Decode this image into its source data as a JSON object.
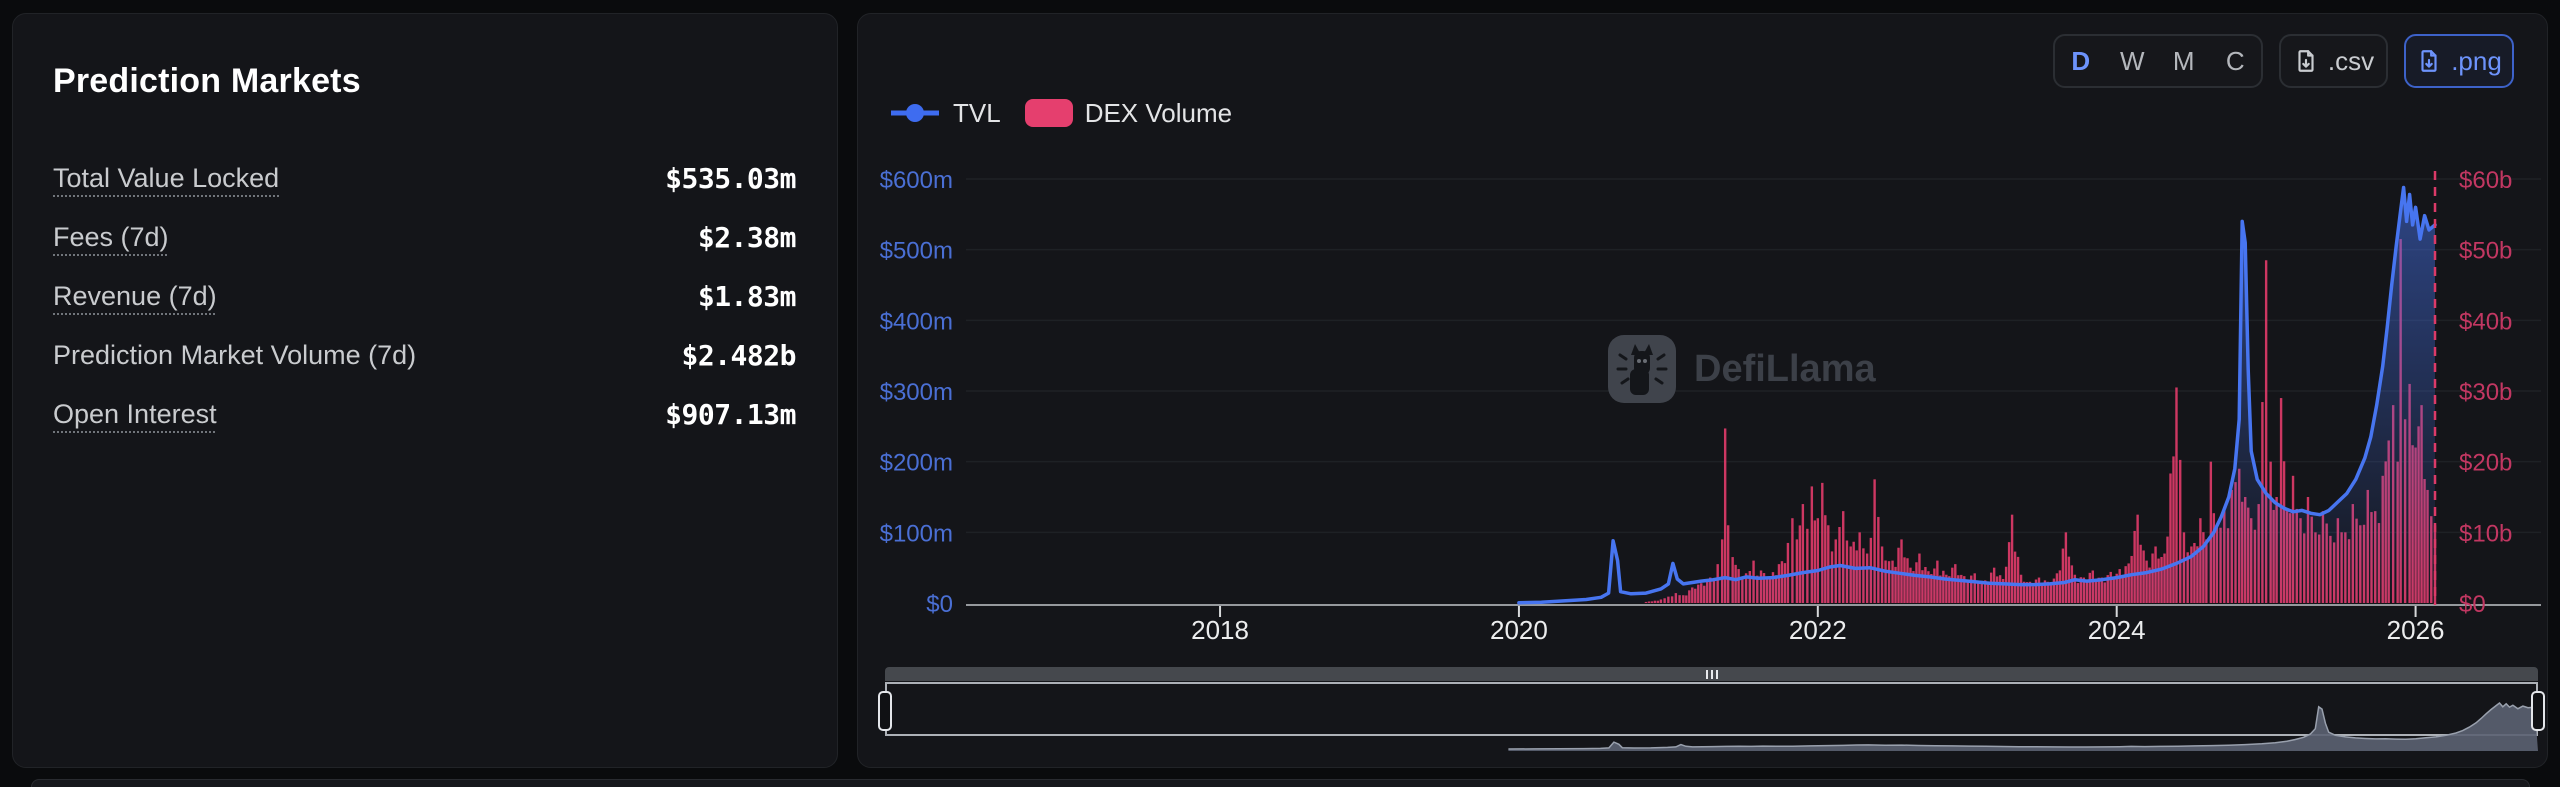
{
  "left_panel": {
    "title": "Prediction Markets",
    "stats": [
      {
        "label": "Total Value Locked",
        "value": "$535.03m",
        "underline": true
      },
      {
        "label": "Fees (7d)",
        "value": "$2.38m",
        "underline": true
      },
      {
        "label": "Revenue (7d)",
        "value": "$1.83m",
        "underline": true
      },
      {
        "label": "Prediction Market Volume (7d)",
        "value": "$2.482b",
        "underline": false
      },
      {
        "label": "Open Interest",
        "value": "$907.13m",
        "underline": true
      }
    ]
  },
  "right_panel": {
    "interval_buttons": [
      {
        "label": "D",
        "active": true
      },
      {
        "label": "W",
        "active": false
      },
      {
        "label": "M",
        "active": false
      },
      {
        "label": "C",
        "active": false
      }
    ],
    "export_buttons": [
      {
        "label": ".csv",
        "accent": false
      },
      {
        "label": ".png",
        "accent": true
      }
    ],
    "watermark": "DefiLlama",
    "colors": {
      "blue_accent": "#6d93fb",
      "tvl_line": "#4775f0",
      "left_axis_label": "#4a6fd4",
      "volume_bar": "#dc3a68",
      "right_axis_label": "#c23762",
      "legend_tvl": "#3e6cf0",
      "legend_dex": "#e53f6e",
      "gridline": "#1e2125",
      "axis_line": "#96999d",
      "x_label": "#ecedee",
      "brush_area": "#5b6272",
      "brush_stroke": "#99a0ad"
    }
  },
  "chart_data": {
    "type": "line+bar",
    "legend": [
      "TVL",
      "DEX Volume"
    ],
    "x_ticks": [
      {
        "label": "2018",
        "t": 2018
      },
      {
        "label": "2020",
        "t": 2020
      },
      {
        "label": "2022",
        "t": 2022
      },
      {
        "label": "2024",
        "t": 2024
      },
      {
        "label": "2026",
        "t": 2026
      }
    ],
    "x_range": [
      2016.3,
      2026.15
    ],
    "marker_line_x": 2026.13,
    "left_axis": {
      "ticks": [
        "$0",
        "$100m",
        "$200m",
        "$300m",
        "$400m",
        "$500m",
        "$600m"
      ],
      "range_m": [
        0,
        600
      ]
    },
    "right_axis": {
      "ticks": [
        "$0",
        "$10b",
        "$20b",
        "$30b",
        "$40b",
        "$50b",
        "$60b"
      ],
      "range_b": [
        0,
        60
      ]
    },
    "bar_texture": [
      1,
      0.55,
      0.8,
      0.45,
      0.9,
      0.6,
      0.75,
      0.4,
      0.95,
      0.65
    ],
    "series": [
      {
        "name": "TVL",
        "type": "line",
        "axis": "left",
        "unit": "$m",
        "points": [
          [
            2020.0,
            0.3
          ],
          [
            2020.15,
            1
          ],
          [
            2020.3,
            3
          ],
          [
            2020.45,
            5
          ],
          [
            2020.55,
            8
          ],
          [
            2020.6,
            14
          ],
          [
            2020.63,
            88
          ],
          [
            2020.66,
            60
          ],
          [
            2020.68,
            16
          ],
          [
            2020.75,
            13
          ],
          [
            2020.85,
            14
          ],
          [
            2020.95,
            20
          ],
          [
            2021.0,
            27
          ],
          [
            2021.03,
            56
          ],
          [
            2021.06,
            34
          ],
          [
            2021.1,
            27
          ],
          [
            2021.16,
            29
          ],
          [
            2021.22,
            31
          ],
          [
            2021.3,
            33
          ],
          [
            2021.38,
            36
          ],
          [
            2021.45,
            33
          ],
          [
            2021.52,
            37
          ],
          [
            2021.6,
            35
          ],
          [
            2021.7,
            36
          ],
          [
            2021.8,
            39
          ],
          [
            2021.9,
            43
          ],
          [
            2022.0,
            46
          ],
          [
            2022.08,
            51
          ],
          [
            2022.15,
            53
          ],
          [
            2022.25,
            49
          ],
          [
            2022.35,
            50
          ],
          [
            2022.45,
            45
          ],
          [
            2022.55,
            42
          ],
          [
            2022.65,
            39
          ],
          [
            2022.75,
            37
          ],
          [
            2022.85,
            34
          ],
          [
            2022.95,
            32
          ],
          [
            2023.05,
            30
          ],
          [
            2023.15,
            28
          ],
          [
            2023.25,
            27
          ],
          [
            2023.35,
            26
          ],
          [
            2023.45,
            26
          ],
          [
            2023.55,
            27
          ],
          [
            2023.65,
            29
          ],
          [
            2023.72,
            33
          ],
          [
            2023.8,
            31
          ],
          [
            2023.9,
            33
          ],
          [
            2024.0,
            36
          ],
          [
            2024.1,
            40
          ],
          [
            2024.2,
            43
          ],
          [
            2024.3,
            48
          ],
          [
            2024.4,
            56
          ],
          [
            2024.5,
            66
          ],
          [
            2024.58,
            80
          ],
          [
            2024.65,
            100
          ],
          [
            2024.7,
            122
          ],
          [
            2024.75,
            150
          ],
          [
            2024.79,
            190
          ],
          [
            2024.82,
            260
          ],
          [
            2024.84,
            540
          ],
          [
            2024.86,
            510
          ],
          [
            2024.88,
            330
          ],
          [
            2024.9,
            215
          ],
          [
            2024.94,
            175
          ],
          [
            2025.0,
            155
          ],
          [
            2025.06,
            142
          ],
          [
            2025.12,
            134
          ],
          [
            2025.18,
            129
          ],
          [
            2025.24,
            131
          ],
          [
            2025.3,
            127
          ],
          [
            2025.36,
            125
          ],
          [
            2025.42,
            131
          ],
          [
            2025.48,
            143
          ],
          [
            2025.54,
            155
          ],
          [
            2025.6,
            175
          ],
          [
            2025.66,
            205
          ],
          [
            2025.7,
            235
          ],
          [
            2025.74,
            280
          ],
          [
            2025.78,
            335
          ],
          [
            2025.81,
            390
          ],
          [
            2025.84,
            450
          ],
          [
            2025.87,
            505
          ],
          [
            2025.9,
            555
          ],
          [
            2025.92,
            588
          ],
          [
            2025.94,
            540
          ],
          [
            2025.96,
            578
          ],
          [
            2025.98,
            535
          ],
          [
            2026.0,
            560
          ],
          [
            2026.03,
            515
          ],
          [
            2026.06,
            548
          ],
          [
            2026.09,
            528
          ],
          [
            2026.13,
            535
          ]
        ]
      },
      {
        "name": "DEX Volume",
        "type": "bar",
        "axis": "right",
        "unit": "$b",
        "points": [
          [
            2020.85,
            0.15
          ],
          [
            2020.95,
            0.5
          ],
          [
            2021.0,
            0.9
          ],
          [
            2021.05,
            1.4
          ],
          [
            2021.1,
            1.1
          ],
          [
            2021.16,
            2.2
          ],
          [
            2021.22,
            2.8
          ],
          [
            2021.28,
            3.6
          ],
          [
            2021.33,
            5.5
          ],
          [
            2021.36,
            9
          ],
          [
            2021.38,
            24.7
          ],
          [
            2021.4,
            11
          ],
          [
            2021.43,
            6.5
          ],
          [
            2021.47,
            4.8
          ],
          [
            2021.52,
            4.2
          ],
          [
            2021.57,
            6
          ],
          [
            2021.62,
            4.6
          ],
          [
            2021.68,
            3.8
          ],
          [
            2021.74,
            5.5
          ],
          [
            2021.8,
            8.5
          ],
          [
            2021.83,
            12
          ],
          [
            2021.86,
            9
          ],
          [
            2021.9,
            14
          ],
          [
            2021.93,
            10.5
          ],
          [
            2021.96,
            16.5
          ],
          [
            2022.0,
            12
          ],
          [
            2022.03,
            17
          ],
          [
            2022.07,
            11
          ],
          [
            2022.12,
            9
          ],
          [
            2022.17,
            13
          ],
          [
            2022.22,
            8
          ],
          [
            2022.28,
            10
          ],
          [
            2022.33,
            7
          ],
          [
            2022.38,
            17.5
          ],
          [
            2022.43,
            8
          ],
          [
            2022.5,
            6
          ],
          [
            2022.56,
            9
          ],
          [
            2022.62,
            5
          ],
          [
            2022.68,
            7
          ],
          [
            2022.74,
            4.5
          ],
          [
            2022.8,
            6
          ],
          [
            2022.86,
            4
          ],
          [
            2022.92,
            5.5
          ],
          [
            2022.98,
            3.8
          ],
          [
            2023.05,
            4.2
          ],
          [
            2023.12,
            3.2
          ],
          [
            2023.18,
            5
          ],
          [
            2023.24,
            3.4
          ],
          [
            2023.3,
            12.5
          ],
          [
            2023.36,
            4
          ],
          [
            2023.42,
            3
          ],
          [
            2023.48,
            3.6
          ],
          [
            2023.54,
            3
          ],
          [
            2023.6,
            4.2
          ],
          [
            2023.66,
            10
          ],
          [
            2023.72,
            4
          ],
          [
            2023.78,
            3.6
          ],
          [
            2023.84,
            4.6
          ],
          [
            2023.9,
            3.6
          ],
          [
            2023.96,
            4.4
          ],
          [
            2024.02,
            4.8
          ],
          [
            2024.08,
            5.6
          ],
          [
            2024.14,
            12.5
          ],
          [
            2024.2,
            6
          ],
          [
            2024.26,
            8
          ],
          [
            2024.32,
            7
          ],
          [
            2024.4,
            30.5
          ],
          [
            2024.45,
            10
          ],
          [
            2024.5,
            8
          ],
          [
            2024.56,
            12
          ],
          [
            2024.6,
            9
          ],
          [
            2024.63,
            20
          ],
          [
            2024.67,
            11
          ],
          [
            2024.72,
            13
          ],
          [
            2024.77,
            16
          ],
          [
            2024.82,
            19
          ],
          [
            2024.86,
            15
          ],
          [
            2024.9,
            12
          ],
          [
            2024.95,
            14
          ],
          [
            2025.0,
            48.5
          ],
          [
            2025.03,
            20
          ],
          [
            2025.07,
            15
          ],
          [
            2025.1,
            29
          ],
          [
            2025.14,
            13
          ],
          [
            2025.18,
            18
          ],
          [
            2025.23,
            12
          ],
          [
            2025.28,
            15
          ],
          [
            2025.33,
            10
          ],
          [
            2025.38,
            13
          ],
          [
            2025.43,
            9.5
          ],
          [
            2025.48,
            12
          ],
          [
            2025.53,
            10
          ],
          [
            2025.58,
            14
          ],
          [
            2025.63,
            11
          ],
          [
            2025.68,
            16
          ],
          [
            2025.73,
            13
          ],
          [
            2025.78,
            18
          ],
          [
            2025.82,
            23
          ],
          [
            2025.85,
            28
          ],
          [
            2025.88,
            20
          ],
          [
            2025.9,
            51.5
          ],
          [
            2025.93,
            26
          ],
          [
            2025.96,
            31
          ],
          [
            2026.0,
            22
          ],
          [
            2026.04,
            28
          ],
          [
            2026.08,
            16
          ],
          [
            2026.13,
            11
          ]
        ]
      }
    ]
  }
}
